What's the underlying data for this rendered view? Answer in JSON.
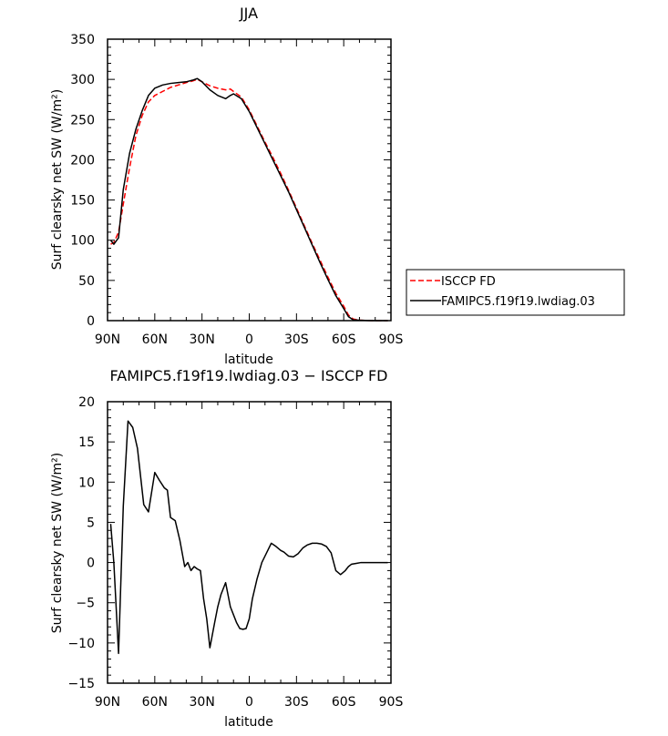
{
  "chart_data": [
    {
      "type": "line",
      "title": "JJA",
      "xlabel": "latitude",
      "ylabel": "Surf clearsky net SW (W/m²)",
      "xlim": [
        90,
        -90
      ],
      "ylim": [
        0,
        350
      ],
      "xticks": [
        90,
        60,
        30,
        0,
        -30,
        -60,
        -90
      ],
      "xtick_labels": [
        "90N",
        "60N",
        "30N",
        "0",
        "30S",
        "60S",
        "90S"
      ],
      "yticks": [
        0,
        50,
        100,
        150,
        200,
        250,
        300,
        350
      ],
      "ytick_labels": [
        "0",
        "50",
        "100",
        "150",
        "200",
        "250",
        "300",
        "350"
      ],
      "grid": false,
      "legend": "right",
      "series": [
        {
          "name": "ISCCP FD",
          "color": "#ff0000",
          "style": "dashed",
          "x": [
            88,
            86,
            83,
            80,
            76,
            72,
            68,
            64,
            60,
            55,
            50,
            45,
            40,
            36,
            33,
            30,
            25,
            20,
            15,
            12,
            10,
            5,
            0,
            -5,
            -10,
            -15,
            -20,
            -25,
            -30,
            -35,
            -40,
            -45,
            -50,
            -55,
            -60,
            -63,
            -66,
            -70,
            -75,
            -80,
            -85,
            -88
          ],
          "y": [
            95,
            97,
            110,
            145,
            190,
            230,
            255,
            272,
            280,
            285,
            290,
            293,
            296,
            298,
            300,
            297,
            292,
            289,
            287,
            288,
            285,
            278,
            262,
            242,
            222,
            203,
            183,
            162,
            140,
            118,
            96,
            75,
            54,
            34,
            18,
            7,
            2,
            0.5,
            0.2,
            0,
            0,
            0
          ]
        },
        {
          "name": "FAMIPC5.f19f19.lwdiag.03",
          "color": "#000000",
          "style": "solid",
          "x": [
            88,
            86,
            83,
            80,
            76,
            72,
            68,
            64,
            60,
            55,
            50,
            45,
            40,
            36,
            33,
            30,
            25,
            20,
            15,
            12,
            10,
            5,
            0,
            -5,
            -10,
            -15,
            -20,
            -25,
            -30,
            -35,
            -40,
            -45,
            -50,
            -55,
            -60,
            -63,
            -66,
            -70,
            -75,
            -80,
            -85,
            -88
          ],
          "y": [
            100,
            95,
            103,
            163,
            208,
            238,
            261,
            280,
            289,
            293,
            295,
            296,
            297,
            299,
            301,
            297,
            287,
            280,
            276,
            280,
            282,
            276,
            260,
            240,
            220,
            200,
            180,
            160,
            138,
            116,
            94,
            72,
            51,
            31,
            15,
            5,
            1,
            0.5,
            0.2,
            0,
            0,
            0
          ]
        }
      ]
    },
    {
      "type": "line",
      "title": "FAMIPC5.f19f19.lwdiag.03 − ISCCP FD",
      "xlabel": "latitude",
      "ylabel": "Surf clearsky net SW (W/m²)",
      "xlim": [
        90,
        -90
      ],
      "ylim": [
        -15,
        20
      ],
      "xticks": [
        90,
        60,
        30,
        0,
        -30,
        -60,
        -90
      ],
      "xtick_labels": [
        "90N",
        "60N",
        "30N",
        "0",
        "30S",
        "60S",
        "90S"
      ],
      "yticks": [
        -15,
        -10,
        -5,
        0,
        5,
        10,
        15,
        20
      ],
      "ytick_labels": [
        "−15",
        "−10",
        "−5",
        "0",
        "5",
        "10",
        "15",
        "20"
      ],
      "grid": false,
      "series": [
        {
          "color": "#000000",
          "style": "solid",
          "x": [
            88,
            86,
            83,
            80,
            77,
            74,
            71,
            67,
            64,
            60,
            57,
            54,
            52,
            50,
            47,
            44,
            41,
            39,
            37,
            35,
            33,
            31,
            29,
            27,
            25,
            22,
            20,
            18,
            15,
            12,
            10,
            8,
            6,
            4,
            2,
            0,
            -2,
            -5,
            -8,
            -11,
            -14,
            -17,
            -20,
            -22,
            -25,
            -28,
            -31,
            -34,
            -37,
            -40,
            -43,
            -46,
            -49,
            -52,
            -55,
            -58,
            -61,
            -63,
            -65,
            -68,
            -71,
            -75,
            -80,
            -85,
            -88
          ],
          "y": [
            4.8,
            0,
            -11.3,
            7,
            17.6,
            16.8,
            14.2,
            7.2,
            6.3,
            11.2,
            10.2,
            9.3,
            9,
            5.6,
            5.2,
            2.7,
            -0.5,
            0,
            -1,
            -0.5,
            -0.8,
            -1,
            -4.5,
            -7,
            -10.6,
            -7.5,
            -5.5,
            -4,
            -2.5,
            -5.5,
            -6.5,
            -7.5,
            -8.2,
            -8.3,
            -8.2,
            -7,
            -4.5,
            -2,
            0,
            1.2,
            2.4,
            2,
            1.5,
            1.3,
            0.8,
            0.7,
            1.1,
            1.8,
            2.2,
            2.4,
            2.4,
            2.3,
            2,
            1.2,
            -1,
            -1.5,
            -1,
            -0.5,
            -0.2,
            -0.1,
            0,
            0,
            0,
            0,
            0
          ]
        }
      ]
    }
  ]
}
